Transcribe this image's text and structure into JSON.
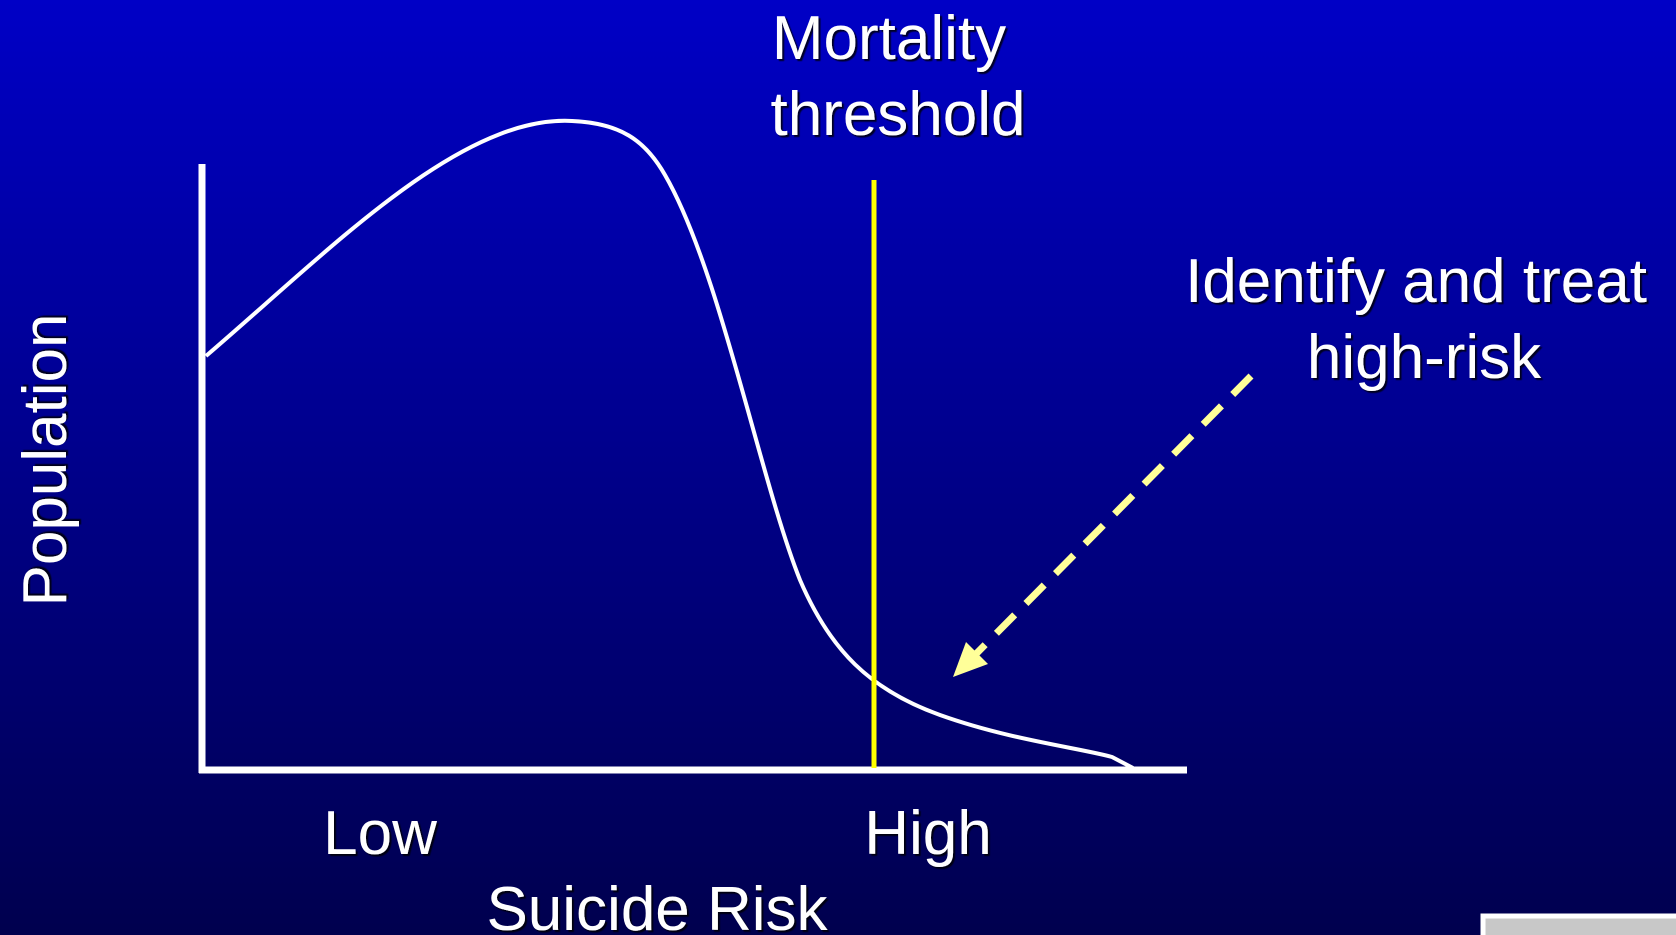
{
  "labels": {
    "threshold": [
      "Mortality",
      "threshold"
    ],
    "annotation": [
      "Identify and treat",
      "high-risk"
    ],
    "y_axis": "Population",
    "low": "Low",
    "high": "High",
    "x_axis": "Suicide Risk"
  }
}
